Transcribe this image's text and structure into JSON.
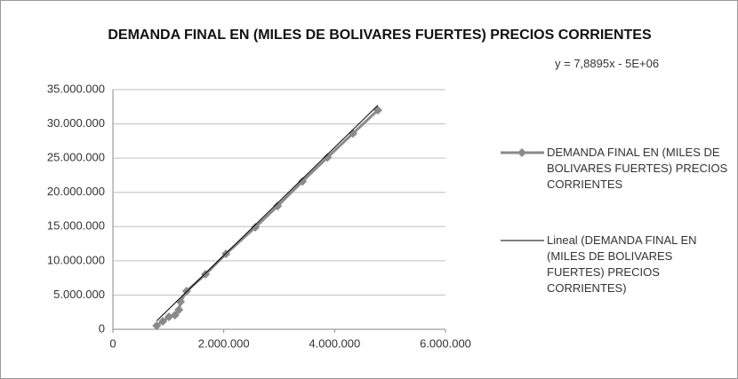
{
  "chart_data": {
    "type": "scatter",
    "title": "DEMANDA FINAL EN (MILES DE BOLIVARES FUERTES) PRECIOS CORRIENTES",
    "annotation": "y = 7,8895x - 5E+06",
    "series": [
      {
        "name": "DEMANDA FINAL EN (MILES DE BOLIVARES FUERTES) PRECIOS CORRIENTES",
        "color": "#8a8a8a",
        "style": "line-markers",
        "x": [
          790000,
          900000,
          1010000,
          1120000,
          1190000,
          1220000,
          1330000,
          1670000,
          2040000,
          2570000,
          2970000,
          3420000,
          3870000,
          4330000,
          4780000
        ],
        "values": [
          520000,
          1170000,
          1810000,
          2070000,
          2850000,
          4020000,
          5570000,
          8040000,
          11020000,
          14900000,
          18000000,
          21600000,
          25100000,
          28600000,
          32000000
        ]
      },
      {
        "name": "Lineal (DEMANDA FINAL EN (MILES DE BOLIVARES FUERTES) PRECIOS CORRIENTES)",
        "color": "#000000",
        "style": "line",
        "x": [
          790000,
          4780000
        ],
        "values": [
          1230000,
          32710000
        ]
      }
    ],
    "xlim": [
      0,
      6000000
    ],
    "xticks": [
      0,
      {
        "value": 2000000,
        "label": "2.000.000"
      },
      {
        "value": 4000000,
        "label": "4.000.000"
      },
      {
        "value": 6000000,
        "label": "6.000.000"
      }
    ],
    "ylim": [
      0,
      35000000
    ],
    "yticks": [
      0,
      {
        "value": 5000000,
        "label": "5.000.000"
      },
      {
        "value": 10000000,
        "label": "10.000.000"
      },
      {
        "value": 15000000,
        "label": "15.000.000"
      },
      {
        "value": 20000000,
        "label": "20.000.000"
      },
      {
        "value": 25000000,
        "label": "25.000.000"
      },
      {
        "value": 30000000,
        "label": "30.000.000"
      },
      {
        "value": 35000000,
        "label": "35.000.000"
      }
    ],
    "grid": true,
    "legend": "right"
  }
}
